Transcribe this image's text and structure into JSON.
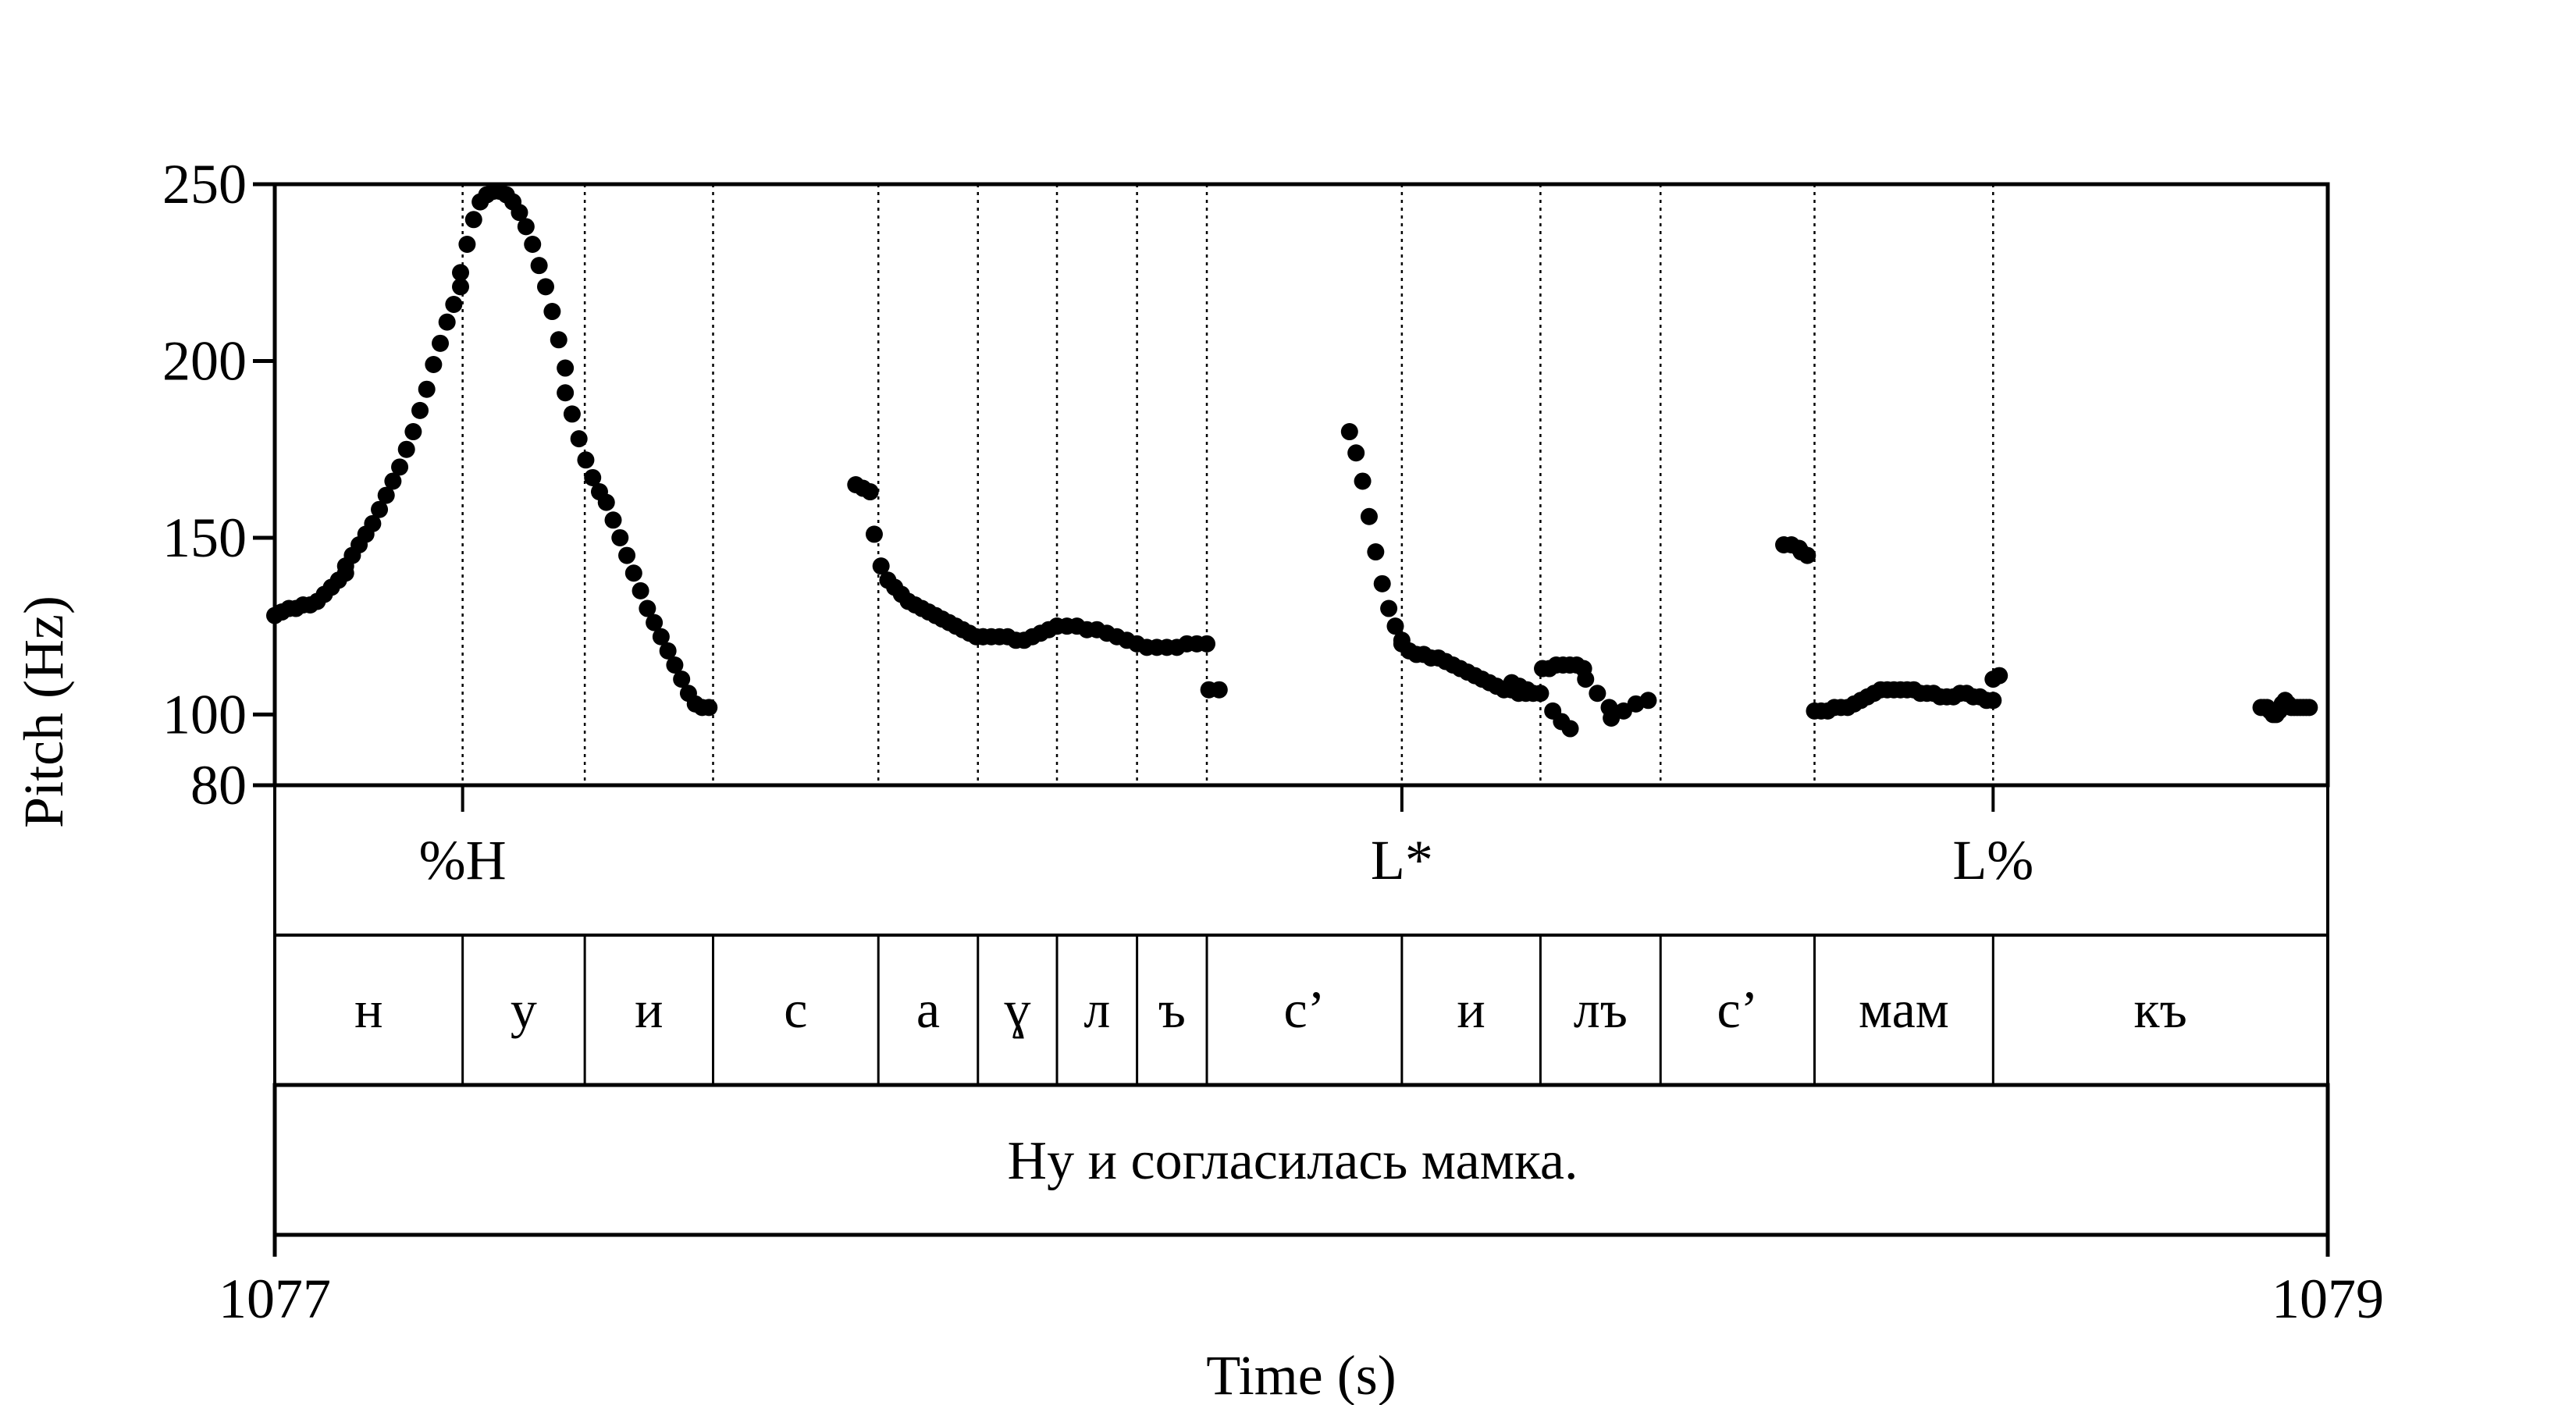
{
  "chart_data": {
    "type": "scatter",
    "xlabel": "Time (s)",
    "ylabel": "Pitch (Hz)",
    "xlim": [
      1077,
      1079
    ],
    "ylim": [
      80,
      250
    ],
    "x_tick_labels": [
      "1077",
      "1079"
    ],
    "y_ticks": [
      80,
      100,
      150,
      200,
      250
    ],
    "y_tick_labels": [
      "80",
      "100",
      "150",
      "200",
      "250"
    ],
    "tone_tier": [
      {
        "label": "%H",
        "t": 1077.183
      },
      {
        "label": "L*",
        "t": 1078.098
      },
      {
        "label": "L%",
        "t": 1078.674
      }
    ],
    "segment_boundaries": [
      1077.183,
      1077.302,
      1077.427,
      1077.588,
      1077.685,
      1077.762,
      1077.84,
      1077.908,
      1078.098,
      1078.233,
      1078.35,
      1078.5,
      1078.674
    ],
    "segments": [
      {
        "label": "н",
        "start": 1077.0,
        "end": 1077.183
      },
      {
        "label": "у",
        "start": 1077.183,
        "end": 1077.302
      },
      {
        "label": "и",
        "start": 1077.302,
        "end": 1077.427
      },
      {
        "label": "с",
        "start": 1077.427,
        "end": 1077.588
      },
      {
        "label": "а",
        "start": 1077.588,
        "end": 1077.685
      },
      {
        "label": "ɣ",
        "start": 1077.685,
        "end": 1077.762
      },
      {
        "label": "л",
        "start": 1077.762,
        "end": 1077.84
      },
      {
        "label": "ъ",
        "start": 1077.84,
        "end": 1077.908
      },
      {
        "label": "с’",
        "start": 1077.908,
        "end": 1078.098
      },
      {
        "label": "и",
        "start": 1078.098,
        "end": 1078.233
      },
      {
        "label": "лъ",
        "start": 1078.233,
        "end": 1078.35
      },
      {
        "label": "с’",
        "start": 1078.35,
        "end": 1078.5
      },
      {
        "label": "мам",
        "start": 1078.5,
        "end": 1078.674
      },
      {
        "label": "къ",
        "start": 1078.674,
        "end": 1079.0
      }
    ],
    "sentence": "Ну и согласилась мамка.",
    "pitch_contours": [
      {
        "t_start": 1077.0,
        "t_end": 1077.069,
        "values": [
          128,
          129,
          130,
          130,
          131,
          131,
          132,
          134,
          136,
          138,
          140
        ]
      },
      {
        "t_start": 1077.069,
        "t_end": 1077.181,
        "values": [
          142,
          145,
          148,
          151,
          154,
          158,
          162,
          166,
          170,
          175,
          180,
          186,
          192,
          199,
          205,
          211,
          216,
          221
        ]
      },
      {
        "t_start": 1077.181,
        "t_end": 1077.283,
        "values": [
          225,
          233,
          240,
          245,
          247,
          248,
          248,
          247,
          245,
          242,
          238,
          233,
          227,
          221,
          214,
          206,
          198
        ]
      },
      {
        "t_start": 1077.283,
        "t_end": 1077.423,
        "values": [
          191,
          185,
          178,
          172,
          167,
          163,
          160,
          155,
          150,
          145,
          140,
          135,
          130,
          126,
          122,
          118,
          114,
          110,
          106,
          103,
          102,
          102
        ]
      },
      {
        "t_start": 1077.566,
        "t_end": 1077.58,
        "values": [
          165,
          164,
          163
        ]
      },
      {
        "t_start": 1077.584,
        "t_end": 1077.69,
        "values": [
          151,
          142,
          138,
          136,
          134,
          132,
          131,
          130,
          129,
          128,
          127,
          126,
          125,
          124,
          123,
          122,
          122
        ]
      },
      {
        "t_start": 1077.69,
        "t_end": 1077.762,
        "values": [
          122,
          122,
          122,
          122,
          121,
          121,
          122,
          123,
          124,
          125
        ]
      },
      {
        "t_start": 1077.762,
        "t_end": 1077.908,
        "values": [
          125,
          125,
          125,
          124,
          124,
          123,
          122,
          121,
          120,
          119,
          119,
          119,
          119,
          120,
          120,
          120
        ]
      },
      {
        "t_start": 1077.91,
        "t_end": 1077.92,
        "values": [
          107,
          107
        ]
      },
      {
        "t_start": 1078.047,
        "t_end": 1078.098,
        "values": [
          180,
          174,
          166,
          156,
          146,
          137,
          130,
          125,
          121
        ]
      },
      {
        "t_start": 1078.098,
        "t_end": 1078.233,
        "values": [
          120,
          118,
          117,
          117,
          116,
          116,
          115,
          114,
          113,
          112,
          111,
          110,
          109,
          108,
          107,
          107,
          106,
          106,
          106,
          106
        ]
      },
      {
        "t_start": 1078.205,
        "t_end": 1078.22,
        "values": [
          109,
          108,
          107
        ]
      },
      {
        "t_start": 1078.235,
        "t_end": 1078.275,
        "values": [
          113,
          113,
          114,
          114,
          114,
          114,
          113
        ]
      },
      {
        "t_start": 1078.245,
        "t_end": 1078.262,
        "values": [
          101,
          98,
          96
        ]
      },
      {
        "t_start": 1078.277,
        "t_end": 1078.3,
        "values": [
          110,
          106,
          102
        ]
      },
      {
        "t_start": 1078.302,
        "t_end": 1078.338,
        "values": [
          99,
          101,
          103,
          104
        ]
      },
      {
        "t_start": 1078.47,
        "t_end": 1078.485,
        "values": [
          148,
          148,
          147
        ]
      },
      {
        "t_start": 1078.487,
        "t_end": 1078.493,
        "values": [
          146,
          145
        ]
      },
      {
        "t_start": 1078.5,
        "t_end": 1078.674,
        "values": [
          101,
          101,
          101,
          102,
          102,
          102,
          103,
          104,
          105,
          106,
          107,
          107,
          107,
          107,
          107,
          107,
          106,
          106,
          106,
          105,
          105,
          105,
          106,
          106,
          105,
          105,
          104,
          104
        ]
      },
      {
        "t_start": 1078.674,
        "t_end": 1078.68,
        "values": [
          110,
          111
        ]
      },
      {
        "t_start": 1078.935,
        "t_end": 1078.982,
        "values": [
          102,
          102,
          102,
          101,
          100,
          100,
          101,
          103,
          104,
          103,
          102,
          102,
          102,
          102,
          102,
          102,
          102
        ]
      }
    ]
  }
}
